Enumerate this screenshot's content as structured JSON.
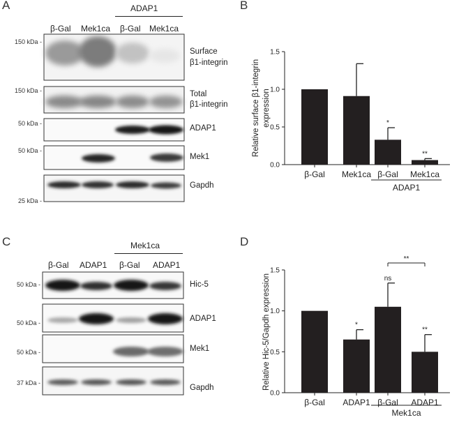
{
  "panels": {
    "A": "A",
    "B": "B",
    "C": "C",
    "D": "D"
  },
  "blotA": {
    "group_label": "ADAP1",
    "lanes": [
      "β-Gal",
      "Mek1ca",
      "β-Gal",
      "Mek1ca"
    ],
    "markers": [
      "150 kDa -",
      "150 kDa -",
      "50 kDa -",
      "50 kDa -",
      "25 kDa -"
    ],
    "rows": [
      {
        "label_line1": "Surface",
        "label_line2": "β1-integrin"
      },
      {
        "label_line1": "Total",
        "label_line2": "β1-integrin"
      },
      {
        "label_line1": "ADAP1",
        "label_line2": ""
      },
      {
        "label_line1": "Mek1",
        "label_line2": ""
      },
      {
        "label_line1": "Gapdh",
        "label_line2": ""
      }
    ]
  },
  "blotC": {
    "group_label": "Mek1ca",
    "lanes": [
      "β-Gal",
      "ADAP1",
      "β-Gal",
      "ADAP1"
    ],
    "markers": [
      "50 kDa -",
      "50 kDa -",
      "50 kDa -",
      "37 kDa -"
    ],
    "rows": [
      {
        "label": "Hic-5"
      },
      {
        "label": "ADAP1"
      },
      {
        "label": "Mek1"
      },
      {
        "label": "Gapdh"
      }
    ]
  },
  "chart_data": [
    {
      "type": "bar",
      "panel": "B",
      "categories": [
        "β-Gal",
        "Mek1ca",
        "β-Gal",
        "Mek1ca"
      ],
      "values": [
        1.0,
        0.91,
        0.33,
        0.06
      ],
      "errors": [
        0,
        0.43,
        0.16,
        0.02
      ],
      "significance": [
        "",
        "",
        "*",
        "**"
      ],
      "group_label": "ADAP1",
      "ylabel_line1": "Relative surface β1-integrin",
      "ylabel_line2": "expression",
      "ylim": [
        0,
        1.5
      ],
      "yticks": [
        "0.0",
        "0.5",
        "1.0",
        "1.5"
      ],
      "ytick_values": [
        0,
        0.5,
        1.0,
        1.5
      ],
      "bar_color": "#231f20"
    },
    {
      "type": "bar",
      "panel": "D",
      "categories": [
        "β-Gal",
        "ADAP1",
        "β-Gal",
        "ADAP1"
      ],
      "values": [
        1.0,
        0.65,
        1.05,
        0.5
      ],
      "errors": [
        0,
        0.12,
        0.29,
        0.21
      ],
      "significance": [
        "",
        "*",
        "ns",
        "**"
      ],
      "bracket_label": "**",
      "group_label": "Mek1ca",
      "ylabel": "Relative Hic-5/Gapdh expression",
      "ylim": [
        0,
        1.5
      ],
      "yticks": [
        "0.0",
        "0.5",
        "1.0",
        "1.5"
      ],
      "ytick_values": [
        0,
        0.5,
        1.0,
        1.5
      ],
      "bar_color": "#231f20"
    }
  ]
}
